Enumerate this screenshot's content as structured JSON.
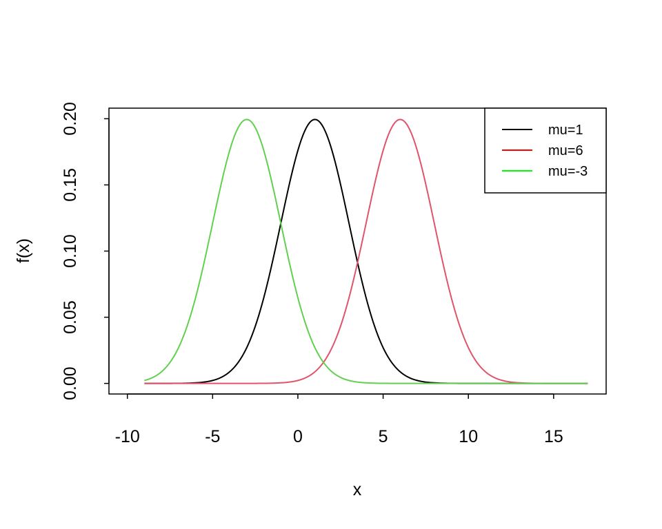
{
  "chart_data": {
    "type": "line",
    "title": "",
    "xlabel": "x",
    "ylabel": "f(x)",
    "xlim": [
      -10,
      17
    ],
    "ylim": [
      0,
      0.2
    ],
    "x_ticks": [
      -10,
      -5,
      0,
      5,
      10,
      15
    ],
    "x_tick_labels": [
      "-10",
      "-5",
      "0",
      "5",
      "10",
      "15"
    ],
    "y_ticks": [
      0,
      0.05,
      0.1,
      0.15,
      0.2
    ],
    "y_tick_labels": [
      "0.00",
      "0.05",
      "0.10",
      "0.15",
      "0.20"
    ],
    "x_domain": [
      -9,
      17
    ],
    "sd": 2,
    "grid": false,
    "legend_position": "top-right",
    "series": [
      {
        "name": "mu=1",
        "mu": 1,
        "color": "#000000",
        "legend_color": "#000000"
      },
      {
        "name": "mu=6",
        "mu": 6,
        "color": "#DF536B",
        "legend_color": "#FF0000"
      },
      {
        "name": "mu=-3",
        "mu": -3,
        "color": "#61D04F",
        "legend_color": "#00FF00"
      }
    ]
  }
}
